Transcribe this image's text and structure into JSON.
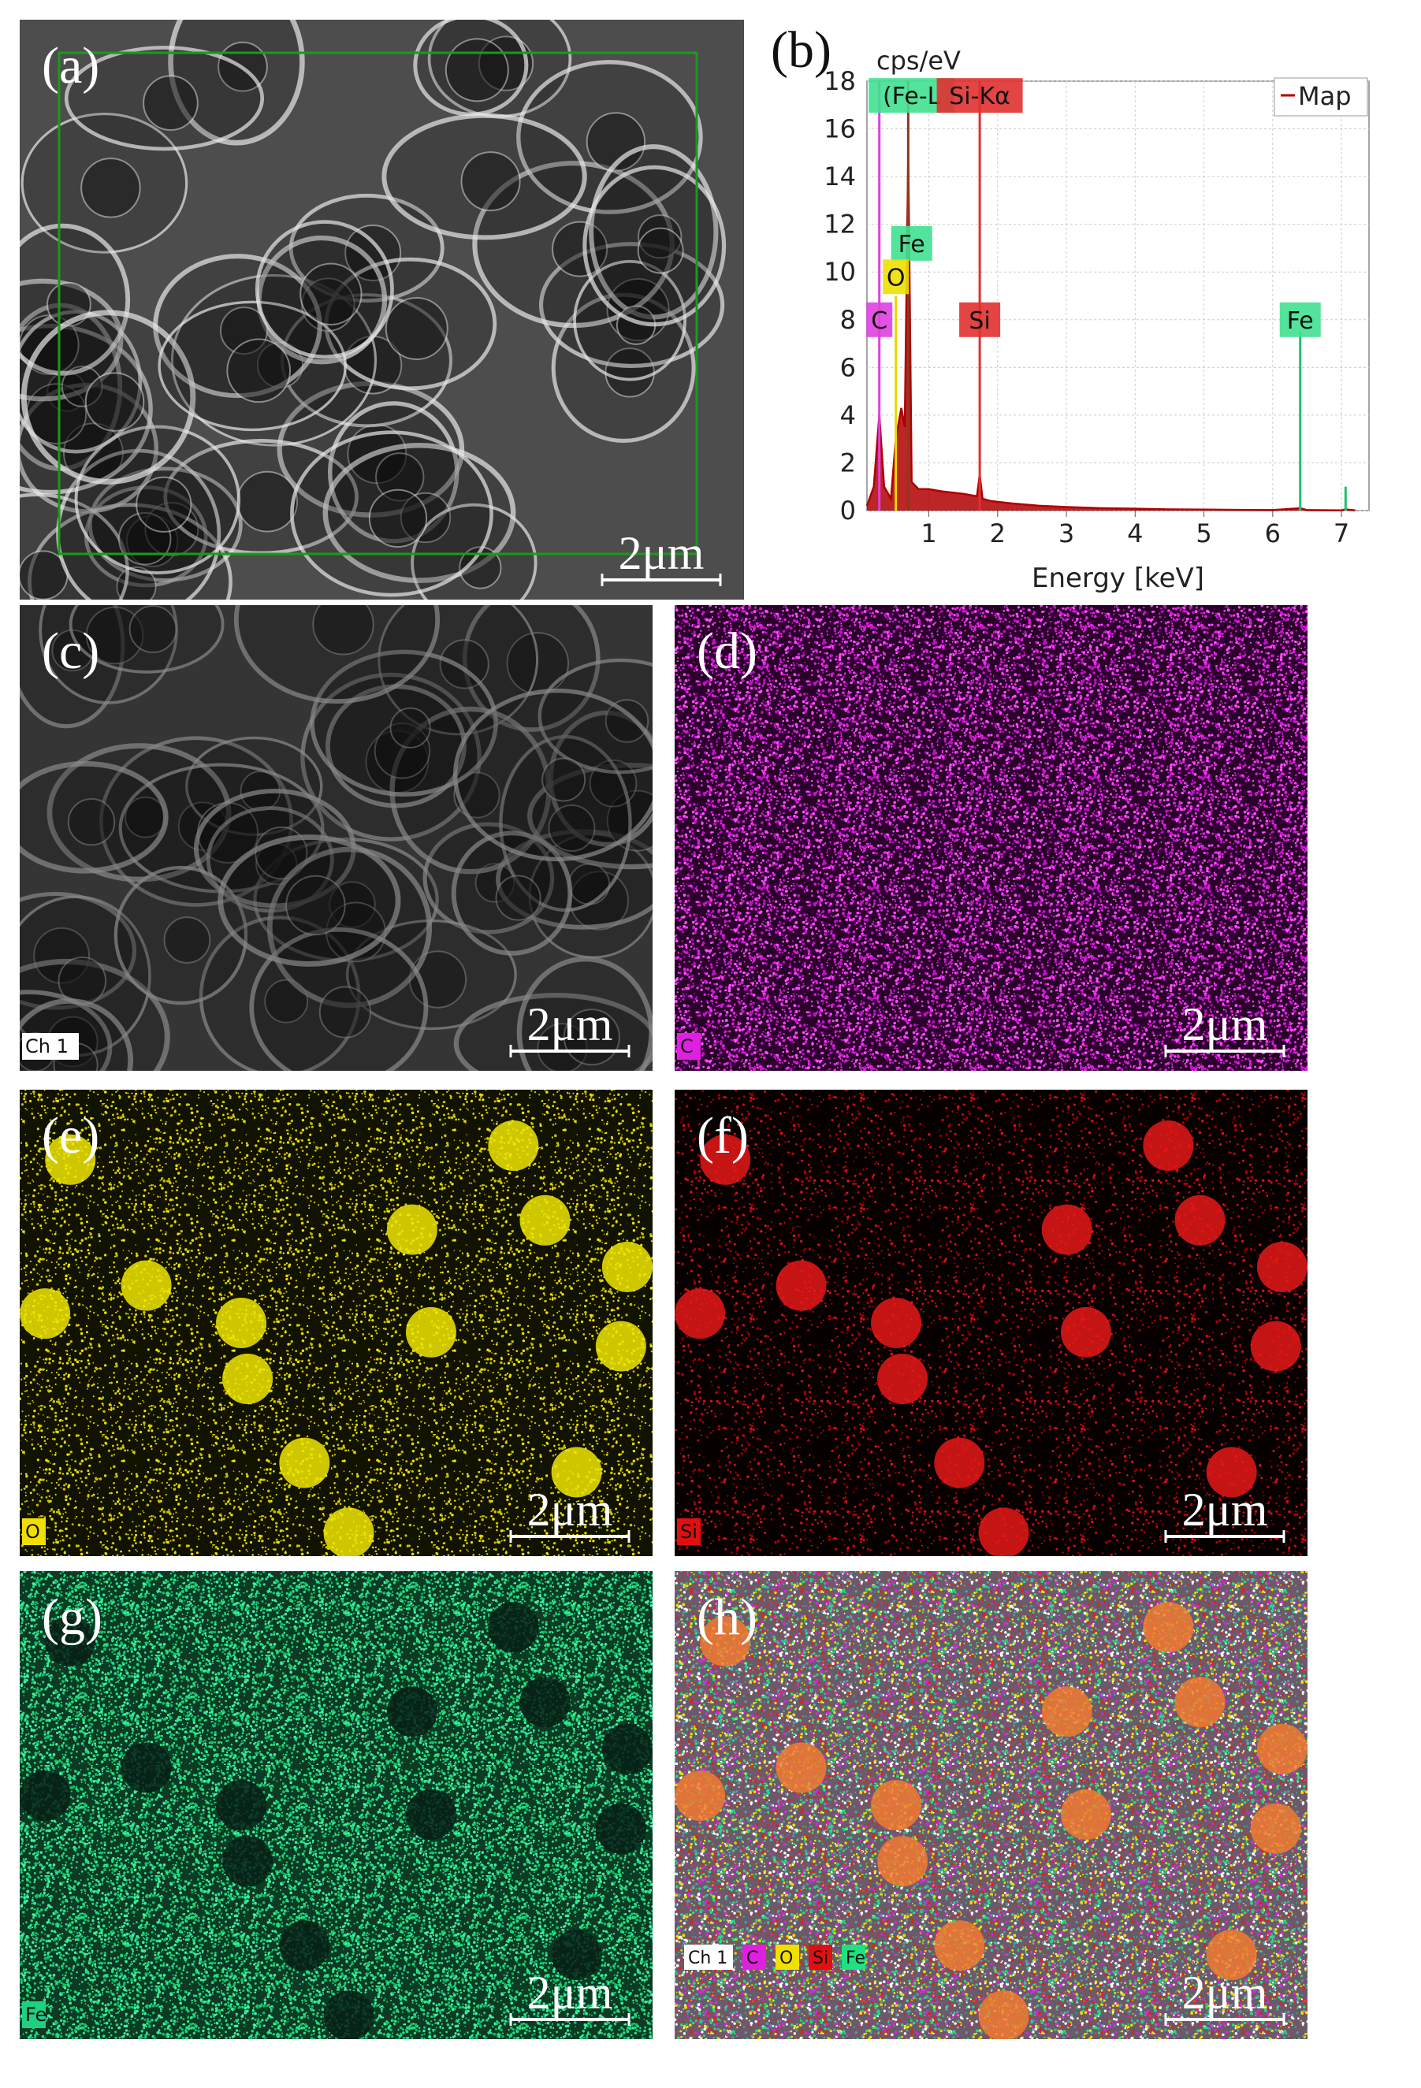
{
  "panels": [
    {
      "label": "(a)",
      "scale_bar": "2μm"
    },
    {
      "label": "(c)",
      "scale_bar": "2μm",
      "channel": "Ch 1"
    },
    {
      "label": "(d)",
      "scale_bar": "2μm",
      "channel": "C"
    },
    {
      "label": "(e)",
      "scale_bar": "2μm",
      "channel": "O"
    },
    {
      "label": "(f)",
      "scale_bar": "2μm",
      "channel": "Si"
    },
    {
      "label": "(g)",
      "scale_bar": "2μm",
      "channel": "Fe"
    },
    {
      "label": "(h)",
      "scale_bar": "2μm",
      "channels": [
        "Ch 1",
        "C",
        "O",
        "Si",
        "Fe"
      ]
    }
  ],
  "chart_data": {
    "type": "line",
    "panel_label": "(b)",
    "y_label": "cps/eV",
    "x_label": "Energy [keV]",
    "x": [
      0.1,
      0.2,
      0.28,
      0.35,
      0.45,
      0.52,
      0.6,
      0.65,
      0.7,
      0.75,
      0.85,
      1.0,
      1.2,
      1.5,
      1.7,
      1.74,
      1.78,
      1.9,
      2.2,
      2.6,
      3.0,
      3.5,
      4.0,
      4.5,
      5.0,
      5.5,
      6.0,
      6.4,
      6.5,
      7.0,
      7.06,
      7.2
    ],
    "series": [
      {
        "name": "Map",
        "color": "#b00000",
        "values": [
          0.2,
          1.0,
          4.0,
          1.0,
          0.5,
          3.0,
          4.3,
          3.5,
          15,
          1.2,
          0.9,
          0.9,
          0.8,
          0.7,
          0.6,
          1.5,
          0.5,
          0.4,
          0.3,
          0.2,
          0.15,
          0.1,
          0.08,
          0.05,
          0.04,
          0.03,
          0.02,
          0.1,
          0.02,
          0.01,
          0.05,
          0.01
        ]
      }
    ],
    "peaks": [
      {
        "x": 0.28,
        "height": 18,
        "color": "#e040e0"
      },
      {
        "x": 0.52,
        "height": 9,
        "color": "#e8d800"
      },
      {
        "x": 0.7,
        "height": 18,
        "color": "#8a3a20"
      },
      {
        "x": 1.74,
        "height": 18,
        "color": "#e03030"
      },
      {
        "x": 6.4,
        "height": 7.5,
        "color": "#20c070"
      },
      {
        "x": 7.06,
        "height": 1,
        "color": "#20c070"
      }
    ],
    "annotations": [
      {
        "text": "(Fe-L",
        "x": 0.75,
        "y": 17.4,
        "color": "#40e090"
      },
      {
        "text": "Si-Kα",
        "x": 1.74,
        "y": 17.4,
        "color": "#e03030"
      },
      {
        "text": "Fe",
        "x": 0.75,
        "y": 11.2,
        "color": "#40e090"
      },
      {
        "text": "O",
        "x": 0.52,
        "y": 9.8,
        "color": "#f0e000"
      },
      {
        "text": "C",
        "x": 0.28,
        "y": 8,
        "color": "#e040e0"
      },
      {
        "text": "Si",
        "x": 1.74,
        "y": 8,
        "color": "#e03030"
      },
      {
        "text": "Fe",
        "x": 6.4,
        "y": 8,
        "color": "#40e090"
      }
    ],
    "xlim": [
      0.1,
      7.4
    ],
    "ylim": [
      0,
      18
    ],
    "xticks": [
      1,
      2,
      3,
      4,
      5,
      6,
      7
    ],
    "yticks": [
      0,
      2,
      4,
      6,
      8,
      10,
      12,
      14,
      16,
      18
    ],
    "grid": true,
    "legend": "upper right"
  }
}
